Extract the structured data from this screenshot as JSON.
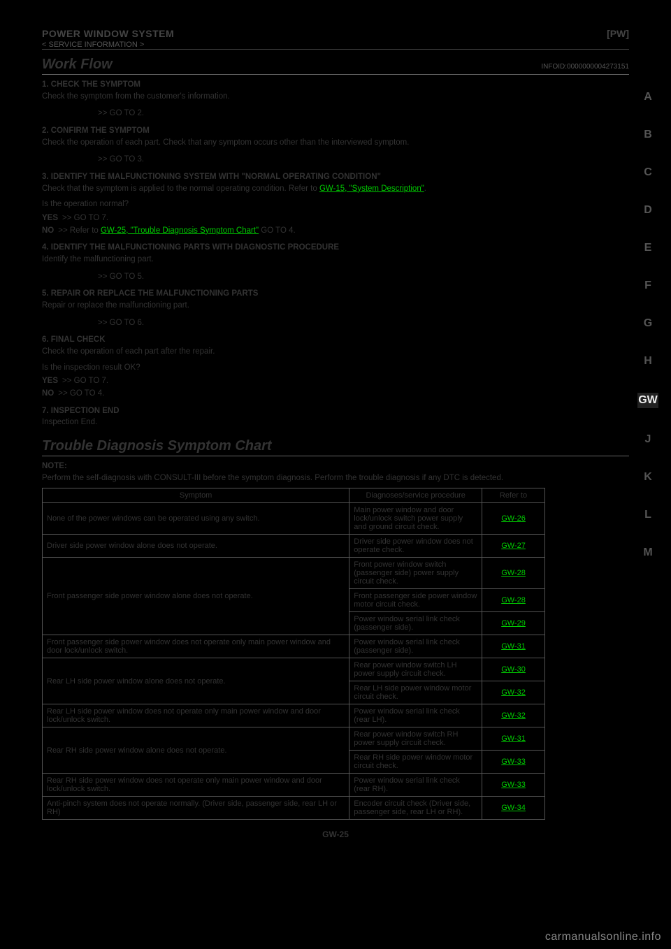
{
  "header": {
    "section": "POWER WINDOW SYSTEM",
    "page_code": "[PW]"
  },
  "sideTabs": [
    "A",
    "B",
    "C",
    "D",
    "E",
    "F",
    "G",
    "H",
    "GW",
    "J",
    "K",
    "L",
    "M"
  ],
  "activeTab": "GW",
  "workflow": {
    "title": "Work Flow",
    "code": "INFOID:0000000004273151",
    "s1_title": "1. CHECK THE SYMPTOM",
    "s1_body": "Check the symptom from the customer's information.",
    "s1_arrow": ">> GO TO 2.",
    "s2_title": "2. CONFIRM THE SYMPTOM",
    "s2_body": "Check the operation of each part. Check that any symptom occurs other than the interviewed symptom.",
    "s2_arrow": ">> GO TO 3.",
    "s3_title": "3. IDENTIFY THE MALFUNCTIONING SYSTEM WITH \"NORMAL OPERATING CONDITION\"",
    "s3_body_pre": "Check that the symptom is applied to the normal operating condition. Refer to ",
    "s3_link": "GW-15, \"System Description\"",
    "s3_body_post": ".",
    "s3_yes": ">> GO TO 7.",
    "s3_no_pre": ">> Refer to ",
    "s3_no_link": "GW-25, \"Trouble Diagnosis Symptom Chart\"",
    "s3_no_post": " GO TO 4.",
    "s4_title": "4. IDENTIFY THE MALFUNCTIONING PARTS WITH DIAGNOSTIC PROCEDURE",
    "s4_body": "Identify the malfunctioning part.",
    "s4_arrow": ">> GO TO 5.",
    "s5_title": "5. REPAIR OR REPLACE THE MALFUNCTIONING PARTS",
    "s5_body": "Repair or replace the malfunctioning part.",
    "s5_arrow": ">> GO TO 6.",
    "s6_title": "6. FINAL CHECK",
    "s6_body": "Check the operation of each part after the repair.",
    "s6_yes": ">> GO TO 7.",
    "s6_no": ">> GO TO 4.",
    "s7_title": "7. INSPECTION END",
    "s7_body": "Inspection End."
  },
  "chart": {
    "title": "Trouble Diagnosis Symptom Chart",
    "note": "NOTE:",
    "note_body": "Perform the self-diagnosis with CONSULT-III before the symptom diagnosis. Perform the trouble diagnosis if any DTC is detected.",
    "th1": "Symptom",
    "th2": "Diagnoses/service procedure",
    "th3": "Refer to",
    "rows": [
      {
        "s": "None of the power windows can be operated using any switch.",
        "i": "Main power window and door lock/unlock switch power supply and ground circuit check.",
        "r": "GW-26"
      },
      {
        "s": "Driver side power window alone does not operate.",
        "i": "Driver side power window does not operate check.",
        "r": "GW-27"
      },
      {
        "s_pre": "Front passenger side power window alone does not operate.",
        "s_sub": [
          "Front power window switch (passenger side) power supply circuit check.",
          "Front passenger side power window motor circuit check.",
          "Power window serial link check (passenger side)."
        ],
        "i": [
          "Front power window switch (passenger side) power supply circuit check.",
          "Front passenger side power window motor circuit check.",
          "Power window serial link check (passenger side)."
        ],
        "r": [
          "GW-28",
          "GW-28",
          "GW-29"
        ]
      },
      {
        "s": "Front passenger side power window does not operate only main power window and door lock/unlock switch.",
        "i": "Power window serial link check (passenger side).",
        "r": "GW-31"
      },
      {
        "s_pre": "Rear LH side power window alone does not operate.",
        "i": [
          "Rear power window switch LH power supply circuit check.",
          "Rear LH side power window motor circuit check."
        ],
        "r": [
          "GW-30",
          "GW-32"
        ]
      },
      {
        "s": "Rear LH side power window does not operate only main power window and door lock/unlock switch.",
        "i": "Power window serial link check (rear LH).",
        "r": "GW-32"
      },
      {
        "s_pre": "Rear RH side power window alone does not operate.",
        "i": [
          "Rear power window switch RH power supply circuit check.",
          "Rear RH side power window motor circuit check."
        ],
        "r": [
          "GW-31",
          "GW-33"
        ]
      },
      {
        "s": "Rear RH side power window does not operate only main power window and door lock/unlock switch.",
        "i": "Power window serial link check (rear RH).",
        "r": "GW-33"
      },
      {
        "s": "Anti-pinch system does not operate normally. (Driver side, passenger side, rear LH or RH)",
        "i": "Encoder circuit check (Driver side, passenger side, rear LH or RH).",
        "r": "GW-34"
      }
    ]
  },
  "pageNumber": "GW-25",
  "watermark": "carmanualsonline.info",
  "colors": {
    "link": "#00CC00",
    "bg": "#000000"
  }
}
